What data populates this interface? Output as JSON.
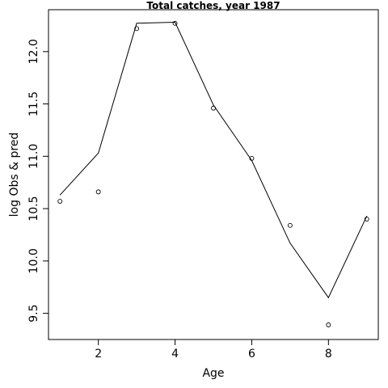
{
  "chart_data": {
    "type": "scatter",
    "title": "Total catches, year 1987",
    "xlabel": "Age",
    "ylabel": "log Obs & pred",
    "xlim": [
      0.7,
      9.3
    ],
    "ylim": [
      9.25,
      12.4
    ],
    "xticks": [
      2,
      4,
      6,
      8
    ],
    "yticks": [
      9.5,
      10.0,
      10.5,
      11.0,
      11.5,
      12.0
    ],
    "xtick_labels": [
      "2",
      "4",
      "6",
      "8"
    ],
    "ytick_labels": [
      "9.5",
      "10.0",
      "10.5",
      "11.0",
      "11.5",
      "12.0"
    ],
    "grid": false,
    "series": [
      {
        "kind": "points",
        "x": [
          1,
          2,
          3,
          4,
          5,
          6,
          7,
          8,
          9
        ],
        "y": [
          10.57,
          10.66,
          12.22,
          12.27,
          11.46,
          10.98,
          10.34,
          9.39,
          10.4
        ]
      },
      {
        "kind": "line",
        "x": [
          1,
          2,
          3,
          4,
          5,
          6,
          7,
          8,
          9
        ],
        "y": [
          10.63,
          11.03,
          12.27,
          12.28,
          11.49,
          10.96,
          10.17,
          9.65,
          10.43
        ]
      }
    ]
  }
}
